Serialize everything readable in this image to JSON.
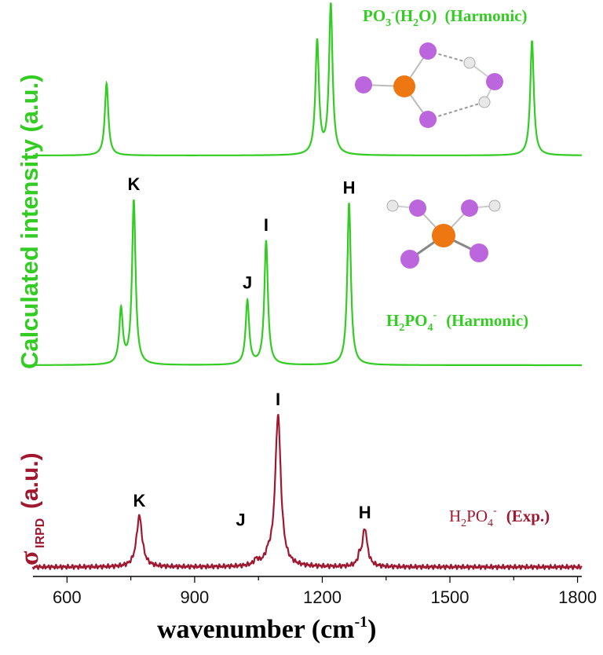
{
  "chart_data": [
    {
      "type": "line",
      "title": "PO3-(H2O) (Harmonic)",
      "title_parts": {
        "main": "PO",
        "sub": "3",
        "sup": "-",
        "rest_open": "(H",
        "rest_sub": "2",
        "rest_close": "O)",
        "suffix": "(Harmonic)"
      },
      "color": "#33cc22",
      "peaks": [
        {
          "x": 693,
          "height": 0.47,
          "width": 5
        },
        {
          "x": 1188,
          "height": 0.74,
          "width": 5
        },
        {
          "x": 1220,
          "height": 0.98,
          "width": 5
        },
        {
          "x": 1693,
          "height": 0.75,
          "width": 5
        }
      ],
      "inset": "molecule-po3-h2o"
    },
    {
      "type": "line",
      "title": "H2PO4- (Harmonic)",
      "title_parts": {
        "main": "H",
        "sub1": "2",
        "mid": "PO",
        "sub2": "4",
        "sup": "-",
        "suffix": "(Harmonic)"
      },
      "color": "#33cc22",
      "peaks": [
        {
          "x": 727,
          "height": 0.3,
          "width": 5,
          "label": ""
        },
        {
          "x": 757,
          "height": 0.9,
          "width": 5,
          "label": "K"
        },
        {
          "x": 1024,
          "height": 0.35,
          "width": 5,
          "label": "J"
        },
        {
          "x": 1068,
          "height": 0.68,
          "width": 5,
          "label": "I"
        },
        {
          "x": 1263,
          "height": 0.89,
          "width": 5,
          "label": "H"
        }
      ],
      "inset": "molecule-h2po4"
    },
    {
      "type": "line",
      "title": "H2PO4- (Exp.)",
      "title_parts": {
        "main": "H",
        "sub1": "2",
        "mid": "PO",
        "sub2": "4",
        "sup": "-",
        "suffix": "(Exp.)"
      },
      "color": "#a01830",
      "peaks": [
        {
          "x": 770,
          "height": 0.28,
          "width": 8,
          "label": "K"
        },
        {
          "x": 1045,
          "height": 0.03,
          "width": 6,
          "label": "J"
        },
        {
          "x": 1073,
          "height": 0.04,
          "width": 8,
          "label": ""
        },
        {
          "x": 1096,
          "height": 0.83,
          "width": 8,
          "label": "I"
        },
        {
          "x": 1287,
          "height": 0.04,
          "width": 4,
          "label": ""
        },
        {
          "x": 1300,
          "height": 0.21,
          "width": 7,
          "label": "H"
        }
      ]
    }
  ],
  "axes": {
    "xlabel_main": "wavenumber (cm",
    "xlabel_sup": "-1",
    "xlabel_close": ")",
    "xlim": [
      520,
      1810
    ],
    "xticks": [
      600,
      900,
      1200,
      1500,
      1800
    ],
    "ylabel_calc": "Calculated intensity (a.u.)",
    "ylabel_exp_sigma": "σ",
    "ylabel_exp_sub": "IRPD",
    "ylabel_exp_unit": "(a.u.)"
  },
  "colors": {
    "calc": "#33cc22",
    "exp": "#a01830",
    "axis": "#000000"
  }
}
